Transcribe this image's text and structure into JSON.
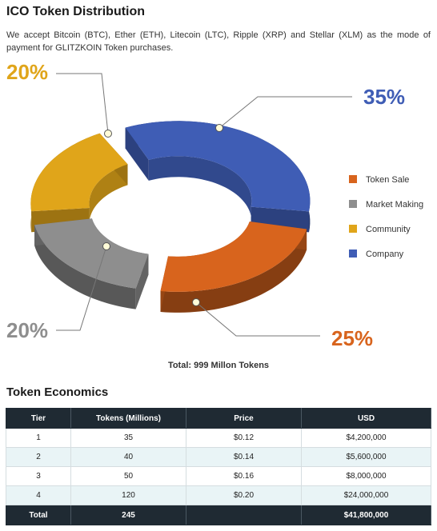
{
  "title": "ICO Token Distribution",
  "intro": "We accept Bitcoin (BTC), Ether (ETH), Litecoin (LTC), Ripple (XRP) and Stellar (XLM) as the mode of payment for GLITZKOIN Token purchases.",
  "chart_data": {
    "type": "pie",
    "variant": "3d-donut",
    "slices": [
      {
        "label": "Token Sale",
        "value": 25,
        "percent_label": "25%",
        "color": "#d8641d"
      },
      {
        "label": "Market Making",
        "value": 20,
        "percent_label": "20%",
        "color": "#8e8e8e"
      },
      {
        "label": "Community",
        "value": 20,
        "percent_label": "20%",
        "color": "#e0a51a"
      },
      {
        "label": "Company",
        "value": 35,
        "percent_label": "35%",
        "color": "#3f5db5"
      }
    ],
    "legend_position": "right",
    "caption": "Total: 999 Millon Tokens"
  },
  "economics": {
    "title": "Token Economics",
    "headers": [
      "Tier",
      "Tokens (Millions)",
      "Price",
      "USD"
    ],
    "rows": [
      [
        "1",
        "35",
        "$0.12",
        "$4,200,000"
      ],
      [
        "2",
        "40",
        "$0.14",
        "$5,600,000"
      ],
      [
        "3",
        "50",
        "$0.16",
        "$8,000,000"
      ],
      [
        "4",
        "120",
        "$0.20",
        "$24,000,000"
      ]
    ],
    "total": [
      "Total",
      "245",
      "",
      "$41,800,000"
    ]
  }
}
